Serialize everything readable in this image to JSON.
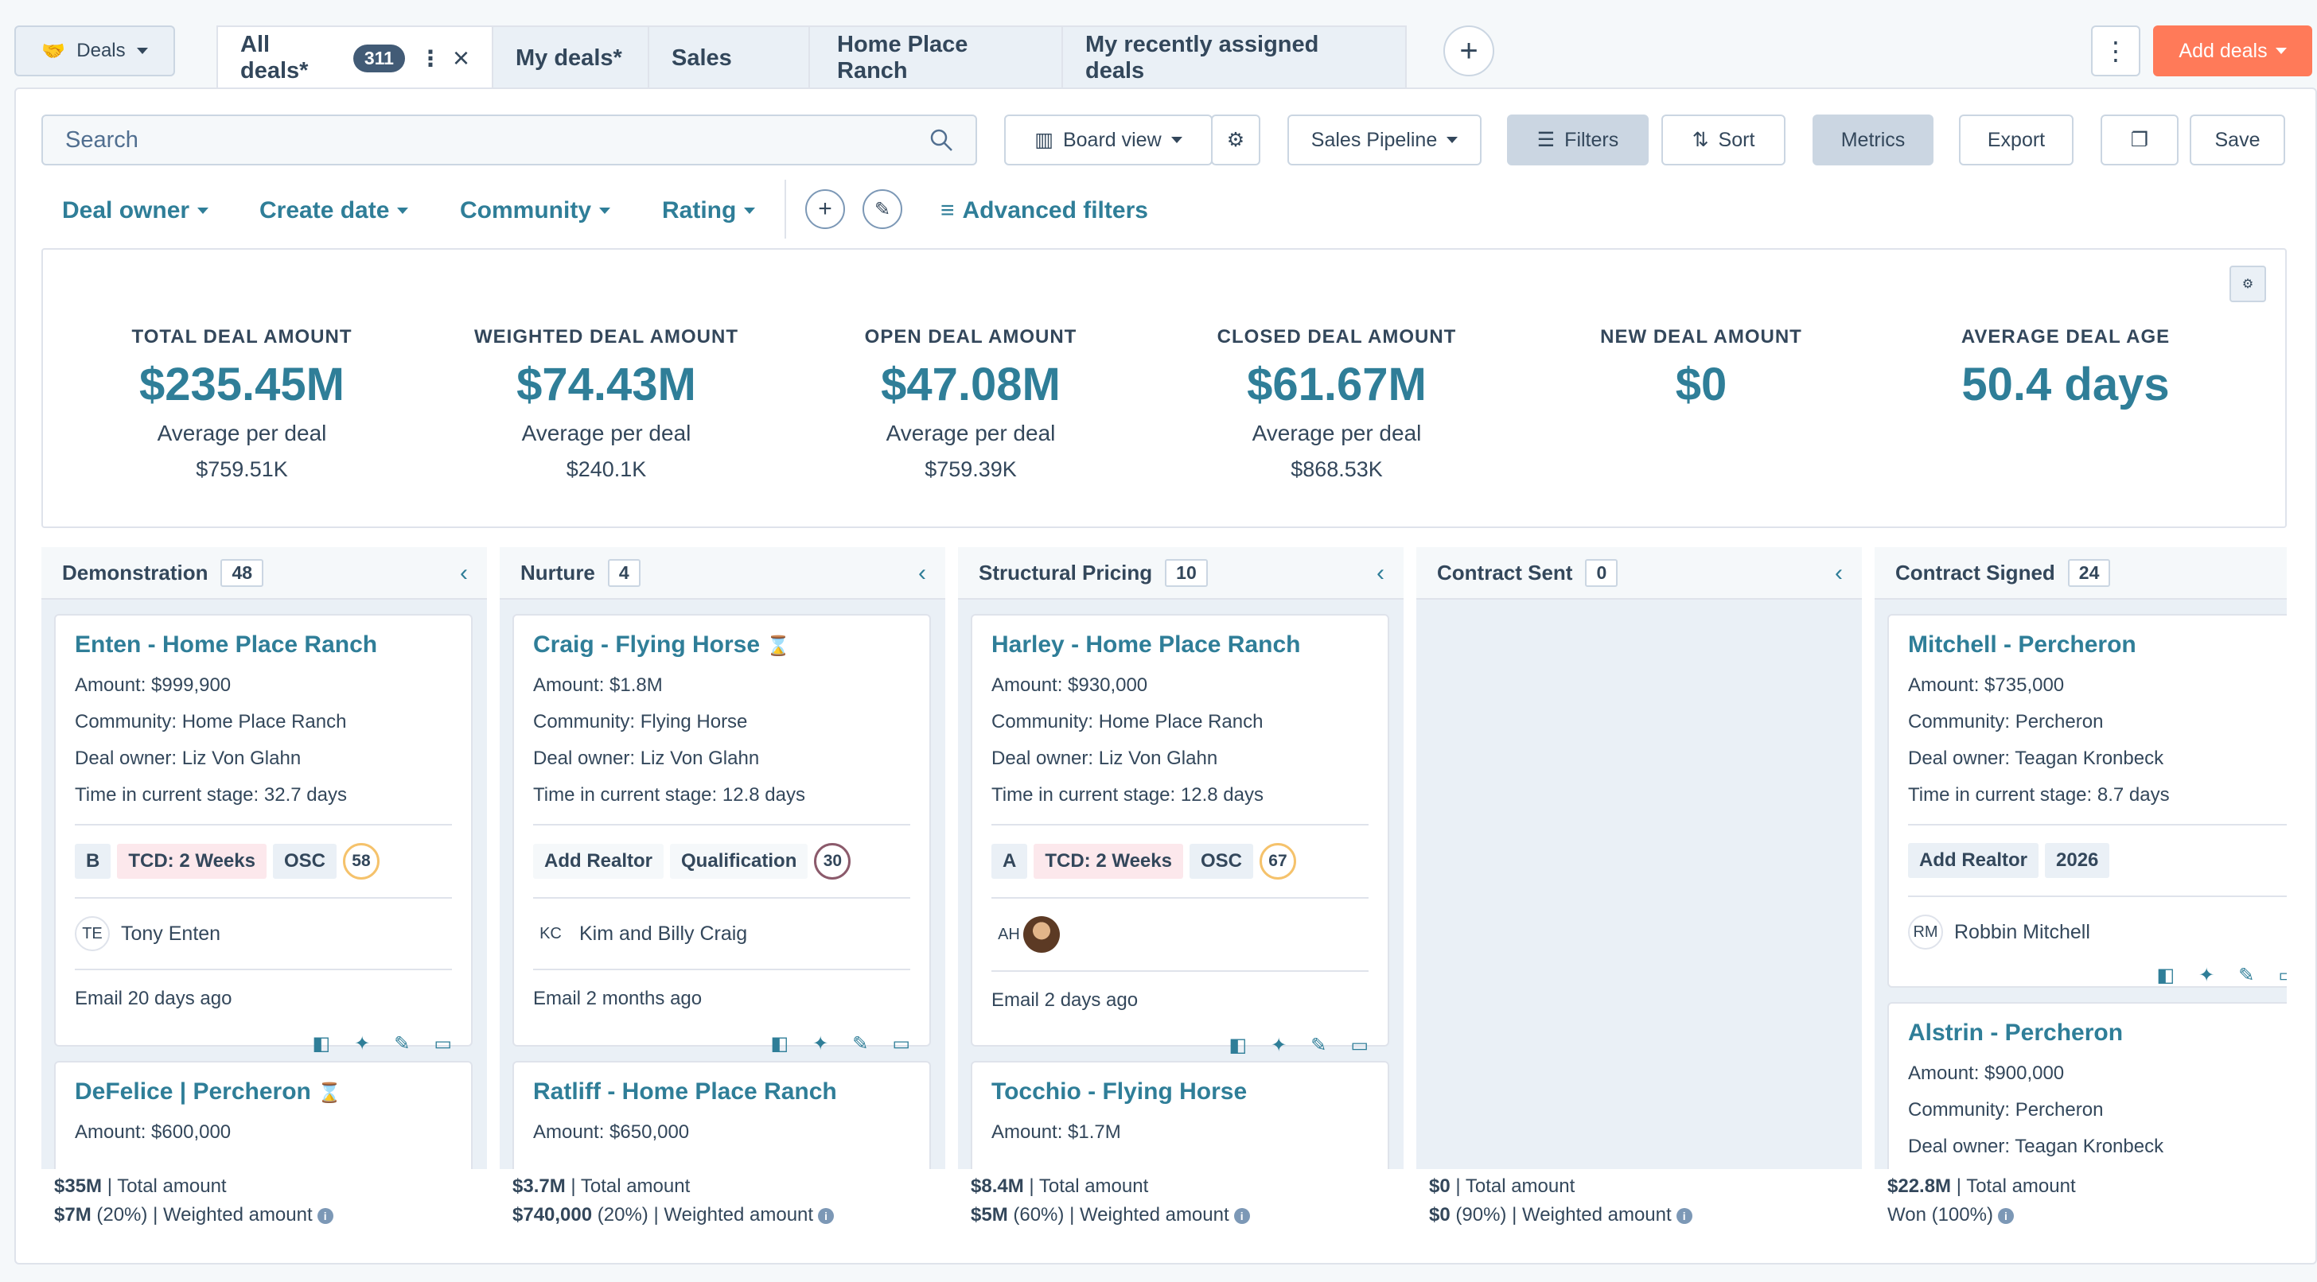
{
  "object_selector": {
    "label": "Deals",
    "icon": "handshake-icon"
  },
  "tabs": [
    {
      "label": "All deals*",
      "count": "311"
    },
    {
      "label": "My deals*"
    },
    {
      "label": "Sales"
    },
    {
      "label": "Home Place Ranch"
    },
    {
      "label": "My recently assigned deals"
    }
  ],
  "header": {
    "add_deals_label": "Add deals"
  },
  "toolbar": {
    "search_placeholder": "Search",
    "board_view_label": "Board view",
    "pipeline_label": "Sales Pipeline",
    "filters_label": "Filters",
    "sort_label": "Sort",
    "metrics_label": "Metrics",
    "export_label": "Export",
    "save_label": "Save"
  },
  "quick_filters": [
    "Deal owner",
    "Create date",
    "Community",
    "Rating"
  ],
  "advanced_filters_label": "Advanced filters",
  "metrics": [
    {
      "label": "TOTAL DEAL AMOUNT",
      "value": "$235.45M",
      "sub": "Average per deal",
      "sub_value": "$759.51K"
    },
    {
      "label": "WEIGHTED DEAL AMOUNT",
      "value": "$74.43M",
      "sub": "Average per deal",
      "sub_value": "$240.1K"
    },
    {
      "label": "OPEN DEAL AMOUNT",
      "value": "$47.08M",
      "sub": "Average per deal",
      "sub_value": "$759.39K"
    },
    {
      "label": "CLOSED DEAL AMOUNT",
      "value": "$61.67M",
      "sub": "Average per deal",
      "sub_value": "$868.53K"
    },
    {
      "label": "NEW DEAL AMOUNT",
      "value": "$0",
      "sub": "",
      "sub_value": ""
    },
    {
      "label": "AVERAGE DEAL AGE",
      "value": "50.4 days",
      "sub": "",
      "sub_value": ""
    }
  ],
  "columns": [
    {
      "name": "Demonstration",
      "count": "48",
      "cards": [
        {
          "title": "Enten - Home Place Ranch",
          "amount": "Amount: $999,900",
          "community": "Community: Home Place Ranch",
          "owner": "Deal owner: Liz Von Glahn",
          "time": "Time in current stage: 32.7 days",
          "tags": [
            "B",
            "TCD: 2 Weeks",
            "OSC"
          ],
          "score": "58",
          "contact_initials": "TE",
          "contact_name": "Tony Enten",
          "activity": "Email 20 days ago"
        },
        {
          "title": "DeFelice | Percheron",
          "amount": "Amount: $600,000"
        }
      ],
      "total": "$35M",
      "total_label": "| Total amount",
      "weighted": "$7M",
      "weighted_pct": "(20%)",
      "weighted_label": "| Weighted amount"
    },
    {
      "name": "Nurture",
      "count": "4",
      "cards": [
        {
          "title": "Craig - Flying Horse",
          "amount": "Amount: $1.8M",
          "community": "Community: Flying Horse",
          "owner": "Deal owner: Liz Von Glahn",
          "time": "Time in current stage: 12.8 days",
          "tags": [
            "Add Realtor",
            "Qualification"
          ],
          "score": "30",
          "contact_initials": "KC",
          "contact_name": "Kim and Billy Craig",
          "activity": "Email 2 months ago"
        },
        {
          "title": "Ratliff - Home Place Ranch",
          "amount": "Amount: $650,000"
        }
      ],
      "total": "$3.7M",
      "total_label": "| Total amount",
      "weighted": "$740,000",
      "weighted_pct": "(20%)",
      "weighted_label": "| Weighted amount"
    },
    {
      "name": "Structural Pricing",
      "count": "10",
      "cards": [
        {
          "title": "Harley - Home Place Ranch",
          "amount": "Amount: $930,000",
          "community": "Community: Home Place Ranch",
          "owner": "Deal owner: Liz Von Glahn",
          "time": "Time in current stage: 12.8 days",
          "tags": [
            "A",
            "TCD: 2 Weeks",
            "OSC"
          ],
          "score": "67",
          "contact_initials": "AH",
          "contact_name": "",
          "activity": "Email 2 days ago"
        },
        {
          "title": "Tocchio - Flying Horse",
          "amount": "Amount: $1.7M"
        }
      ],
      "total": "$8.4M",
      "total_label": "| Total amount",
      "weighted": "$5M",
      "weighted_pct": "(60%)",
      "weighted_label": "| Weighted amount"
    },
    {
      "name": "Contract Sent",
      "count": "0",
      "cards": [],
      "total": "$0",
      "total_label": "| Total amount",
      "weighted": "$0",
      "weighted_pct": "(90%)",
      "weighted_label": "| Weighted amount"
    },
    {
      "name": "Contract Signed",
      "count": "24",
      "cards": [
        {
          "title": "Mitchell - Percheron",
          "amount": "Amount: $735,000",
          "community": "Community: Percheron",
          "owner": "Deal owner: Teagan Kronbeck",
          "time": "Time in current stage: 8.7 days",
          "tags": [
            "Add Realtor",
            "2026"
          ],
          "contact_initials": "RM",
          "contact_name": "Robbin Mitchell"
        },
        {
          "title": "Alstrin - Percheron",
          "amount": "Amount: $900,000",
          "community": "Community: Percheron",
          "owner": "Deal owner: Teagan Kronbeck"
        }
      ],
      "total": "$22.8M",
      "total_label": "| Total amount",
      "weighted": "Won (100%)",
      "weighted_pct": "",
      "weighted_label": ""
    }
  ]
}
